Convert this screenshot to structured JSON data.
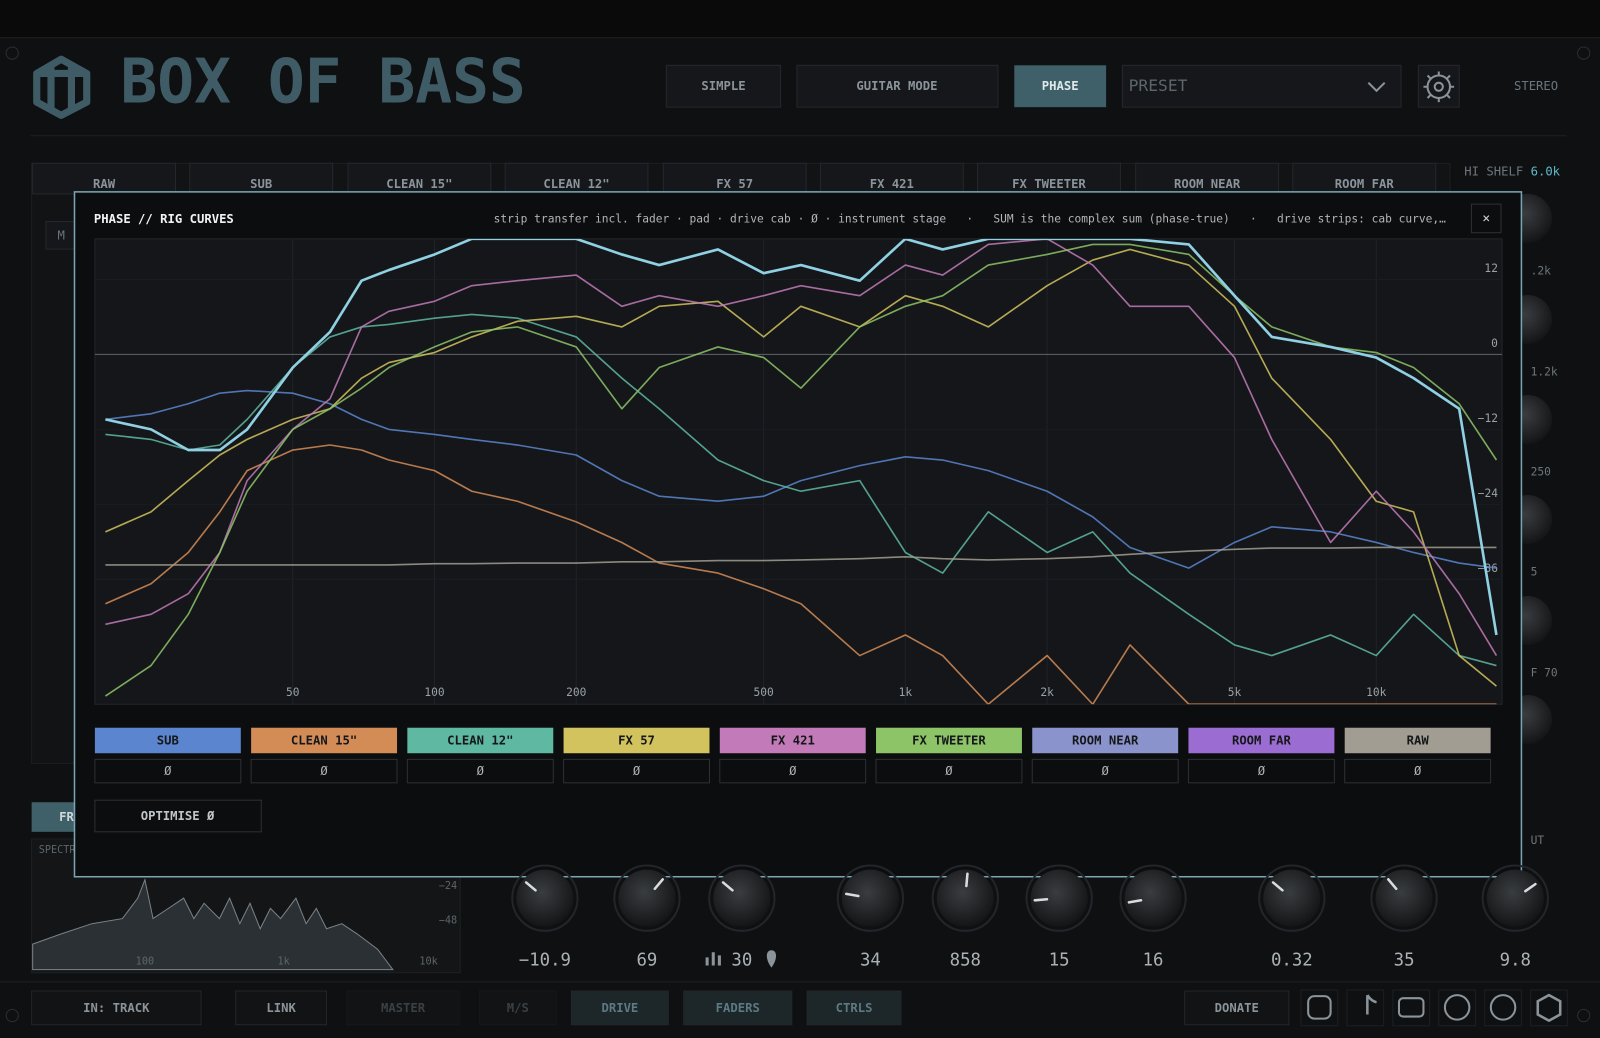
{
  "header": {
    "title": "BOX OF BASS",
    "buttons": [
      "SIMPLE",
      "GUITAR MODE",
      "PHASE"
    ],
    "preset": "PRESET",
    "mode": "STEREO"
  },
  "tabs": [
    "RAW",
    "SUB",
    "CLEAN 15\"",
    "CLEAN 12\"",
    "FX 57",
    "FX 421",
    "FX TWEETER",
    "ROOM NEAR",
    "ROOM FAR"
  ],
  "hi_shelf": {
    "label": "HI SHELF",
    "value": "6.0k"
  },
  "side_labels": [
    ".2k",
    "1.2k",
    "250",
    "5",
    "F 70",
    "UT"
  ],
  "left_panel": {
    "mode": "M",
    "tab": "FR",
    "spectrum_label": "SPECTR",
    "yticks": [
      "−24",
      "−48"
    ],
    "xticks": [
      "100",
      "1k",
      "10k"
    ]
  },
  "modal": {
    "title": "PHASE // RIG CURVES",
    "info": "strip transfer incl. fader · pad · drive cab · Ø · instrument stage   ·   SUM is the complex sum (phase-true)   ·   drive strips: cab curve,…",
    "close": "×",
    "phase_label": "Ø",
    "optimise": "OPTIMISE Ø"
  },
  "chart_data": {
    "type": "line",
    "xscale": "log",
    "grid": "x",
    "xlim": [
      19,
      18500
    ],
    "ylim": [
      -56,
      18.5
    ],
    "xticks": [
      50,
      100,
      200,
      500,
      {
        "value": 1000,
        "label": "1k"
      },
      {
        "value": 2000,
        "label": "2k"
      },
      {
        "value": 5000,
        "label": "5k"
      },
      {
        "value": 10000,
        "label": "10k"
      }
    ],
    "yticks": [
      12,
      0,
      {
        "value": -12,
        "label": "−12"
      },
      {
        "value": -24,
        "label": "−24"
      },
      {
        "value": -36,
        "label": "−36"
      }
    ],
    "x": [
      20,
      25,
      30,
      35,
      40,
      50,
      60,
      70,
      80,
      100,
      120,
      150,
      200,
      250,
      300,
      400,
      500,
      600,
      800,
      1000,
      1200,
      1500,
      2000,
      2500,
      3000,
      4000,
      5000,
      6000,
      8000,
      10000,
      12000,
      15000,
      18000
    ],
    "series": [
      {
        "name": "SUB",
        "color": "#5b86cf",
        "values": [
          -10.4,
          -9.5,
          -7.9,
          -6.2,
          -5.8,
          -6.2,
          -7.9,
          -10.4,
          -12,
          -12.8,
          -13.6,
          -14.5,
          -16.1,
          -20.2,
          -22.7,
          -23.5,
          -22.7,
          -20.2,
          -17.8,
          -16.4,
          -16.9,
          -18.6,
          -21.9,
          -26,
          -30.9,
          -34.2,
          -30.1,
          -27.6,
          -28.4,
          -30.1,
          -31.7,
          -33.4,
          -34.2
        ]
      },
      {
        "name": "CLEAN 15\"",
        "color": "#d48c57",
        "values": [
          -39.9,
          -36.7,
          -31.7,
          -25.2,
          -18.6,
          -15.3,
          -14.5,
          -15.3,
          -16.9,
          -18.6,
          -21.9,
          -23.5,
          -26.8,
          -30.1,
          -33.4,
          -35,
          -37.5,
          -39.9,
          -48.2,
          -44.9,
          -48.2,
          -56,
          -48.2,
          -56,
          -46.5,
          -56,
          -56,
          -56,
          -56,
          -56,
          -56,
          -56,
          -56
        ]
      },
      {
        "name": "CLEAN 12\"",
        "color": "#5fb9a2",
        "values": [
          -12.8,
          -13.6,
          -15.3,
          -14.5,
          -10.4,
          -2.1,
          2.8,
          4.4,
          4.8,
          5.8,
          6.4,
          5.8,
          2.8,
          -3.8,
          -8.7,
          -16.9,
          -20.2,
          -21.9,
          -20.2,
          -31.7,
          -35,
          -25.2,
          -31.7,
          -28.4,
          -35,
          -41.6,
          -46.5,
          -48.2,
          -44.9,
          -48.2,
          -41.6,
          -48.2,
          -49.8
        ]
      },
      {
        "name": "FX 57",
        "color": "#d2c35e",
        "values": [
          -28.4,
          -25.2,
          -20.2,
          -16.1,
          -13.6,
          -10.4,
          -8.7,
          -3.8,
          -1.3,
          0.3,
          2.8,
          5.3,
          6.1,
          4.4,
          7.7,
          8.5,
          2.8,
          7.7,
          4.4,
          9.4,
          7.7,
          4.4,
          11,
          15.1,
          16.8,
          14.3,
          7.7,
          -3.8,
          -13.6,
          -23.5,
          -25.2,
          -48.2,
          -53.1
        ]
      },
      {
        "name": "FX 421",
        "color": "#c27ab9",
        "values": [
          -43.2,
          -41.6,
          -38.3,
          -31.7,
          -20.2,
          -12,
          -7.1,
          4.4,
          6.9,
          8.5,
          11,
          11.8,
          12.7,
          7.7,
          9.4,
          7.7,
          9.4,
          11,
          9.4,
          14.3,
          12.7,
          17.6,
          18.5,
          14.3,
          7.7,
          7.7,
          -0.5,
          -13.6,
          -30.1,
          -21.9,
          -28.4,
          -38.3,
          -48.2
        ]
      },
      {
        "name": "FX TWEETER",
        "color": "#8dc467",
        "values": [
          -54.7,
          -49.8,
          -41.6,
          -31.7,
          -21.9,
          -12,
          -8.7,
          -5.4,
          -2.1,
          1.2,
          3.6,
          4.4,
          1.2,
          -8.7,
          -2.1,
          1.2,
          -0.5,
          -5.4,
          4.4,
          7.7,
          9.4,
          14.3,
          16,
          17.6,
          17.6,
          16,
          9.4,
          4.4,
          1.2,
          0.3,
          -2.1,
          -7.9,
          -16.9
        ]
      },
      {
        "name": "ROOM NEAR",
        "color": "#8b93cc"
      },
      {
        "name": "ROOM FAR",
        "color": "#9b6dd3"
      },
      {
        "name": "RAW",
        "color": "#a19d92",
        "values": [
          -33.7,
          -33.7,
          -33.7,
          -33.7,
          -33.7,
          -33.7,
          -33.7,
          -33.7,
          -33.7,
          -33.5,
          -33.5,
          -33.4,
          -33.4,
          -33.2,
          -33.2,
          -33,
          -33,
          -32.9,
          -32.7,
          -32.4,
          -32.7,
          -32.9,
          -32.7,
          -32.4,
          -32,
          -31.5,
          -31.2,
          -31,
          -31,
          -30.9,
          -30.9,
          -30.9,
          -30.9
        ]
      },
      {
        "color": "#8fd0e2",
        "values": [
          -10.4,
          -12,
          -15.3,
          -15.3,
          -12,
          -2.1,
          3.6,
          11.8,
          13.5,
          16,
          18.5,
          18.5,
          18.5,
          16,
          14.3,
          16.8,
          13,
          14.3,
          11.8,
          18.5,
          16.8,
          18.5,
          18.5,
          18.5,
          18.5,
          17.6,
          9.4,
          2.8,
          1.2,
          -0.5,
          -3.8,
          -8.7,
          -44.9
        ]
      }
    ]
  },
  "knobs": [
    "−10.9",
    "69",
    "30",
    "34",
    "858",
    "15",
    "16",
    "0.32",
    "35",
    "9.8"
  ],
  "footer": {
    "left": [
      "IN: TRACK",
      "LINK",
      "MASTER",
      "M/S",
      "DRIVE",
      "FADERS",
      "CTRLS"
    ],
    "donate": "DONATE"
  }
}
